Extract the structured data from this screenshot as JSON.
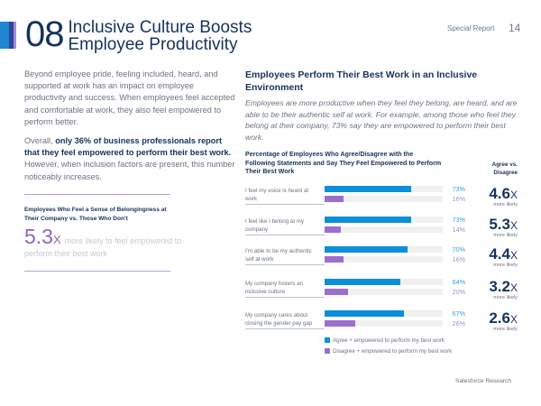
{
  "header": {
    "number": "08",
    "title_line1": "Inclusive Culture Boosts",
    "title_line2": "Employee Productivity",
    "section": "Special Report",
    "page": "14"
  },
  "left": {
    "para1": "Beyond employee pride, feeling included, heard, and supported at work has an impact on employee productivity and success. When employees feel accepted and comfortable at work, they also feel empowered to perform better.",
    "para2_pre": "Overall, ",
    "para2_bold": "only 36% of business professionals report that they feel empowered to perform their best work.",
    "para2_post": " However, when inclusion factors are present, this number noticeably increases.",
    "callout_title": "Employees Who Feel a Sense of Belongingness at Their Company vs. Those Who Don't",
    "callout_value": "5.3",
    "callout_x": "X",
    "callout_text": "more likely to feel empowered to perform their best work"
  },
  "right": {
    "heading": "Employees Perform Their Best Work in an Inclusive Environment",
    "intro": "Employees are more productive when they feel they belong, are heard, and are able to be their authentic self at work. For example, among those who feel they belong at their company, 73% say they are empowered to perform their best work.",
    "chart_title": "Percentage of Employees Who Agree/Disagree with the Following Statements and Say They Feel Empowered to Perform Their Best Work",
    "multiplier_header": "Agree vs. Disagree",
    "more_likely": "more likely"
  },
  "chart_data": {
    "type": "bar",
    "orientation": "horizontal",
    "title": "Percentage of Employees Who Agree/Disagree with the Following Statements and Say They Feel Empowered to Perform Their Best Work",
    "categories": [
      "I feel my voice is heard at work",
      "I feel like I belong at my company",
      "I'm able to be my authentic self at work",
      "My company fosters an inclusive culture",
      "My company cares about closing the gender pay gap"
    ],
    "series": [
      {
        "name": "Agree + empowered to perform my best work",
        "values": [
          73,
          73,
          70,
          64,
          67
        ],
        "color": "#0b8fd8"
      },
      {
        "name": "Disagree + empowered to perform my best work",
        "values": [
          16,
          14,
          16,
          20,
          26
        ],
        "color": "#9a6fcf"
      }
    ],
    "multipliers": [
      "4.6",
      "5.3",
      "4.4",
      "3.2",
      "2.6"
    ],
    "unit": "%",
    "xlim": [
      0,
      100
    ],
    "legend": "bottom"
  },
  "footer": {
    "source": "Salesforce Research"
  }
}
